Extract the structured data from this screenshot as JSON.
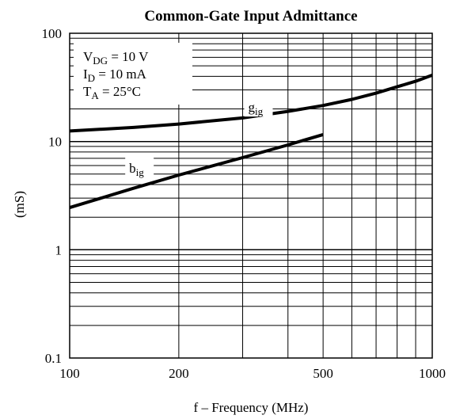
{
  "chart_data": {
    "type": "line",
    "title": "Common-Gate Input Admittance",
    "xlabel": "f – Frequency (MHz)",
    "ylabel": "(mS)",
    "x_scale": "log",
    "y_scale": "log",
    "xlim": [
      100,
      1000
    ],
    "ylim": [
      0.1,
      100
    ],
    "grid": true,
    "x_ticks": [
      {
        "value": 100,
        "label": "100"
      },
      {
        "value": 200,
        "label": "200"
      },
      {
        "value": 500,
        "label": "500"
      },
      {
        "value": 1000,
        "label": "1000"
      }
    ],
    "y_ticks": [
      {
        "value": 0.1,
        "label": "0.1"
      },
      {
        "value": 1,
        "label": "1"
      },
      {
        "value": 10,
        "label": "10"
      },
      {
        "value": 100,
        "label": "100"
      }
    ],
    "conditions": [
      {
        "base": "V",
        "sub": "DG",
        "rest": " = 10 V"
      },
      {
        "base": "I",
        "sub": "D",
        "rest": " = 10 mA"
      },
      {
        "base": "T",
        "sub": "A",
        "rest": " = 25°C"
      }
    ],
    "series": [
      {
        "name": "g",
        "name_sub": "ig",
        "x": [
          100,
          150,
          200,
          300,
          400,
          500,
          600,
          700,
          800,
          900,
          1000
        ],
        "y": [
          12.5,
          13.5,
          14.5,
          16.5,
          19,
          21.5,
          24.5,
          28,
          32,
          36,
          41
        ]
      },
      {
        "name": "b",
        "name_sub": "ig",
        "x": [
          100,
          150,
          200,
          300,
          400,
          500
        ],
        "y": [
          2.45,
          3.7,
          4.9,
          7.1,
          9.3,
          11.6
        ]
      }
    ]
  }
}
